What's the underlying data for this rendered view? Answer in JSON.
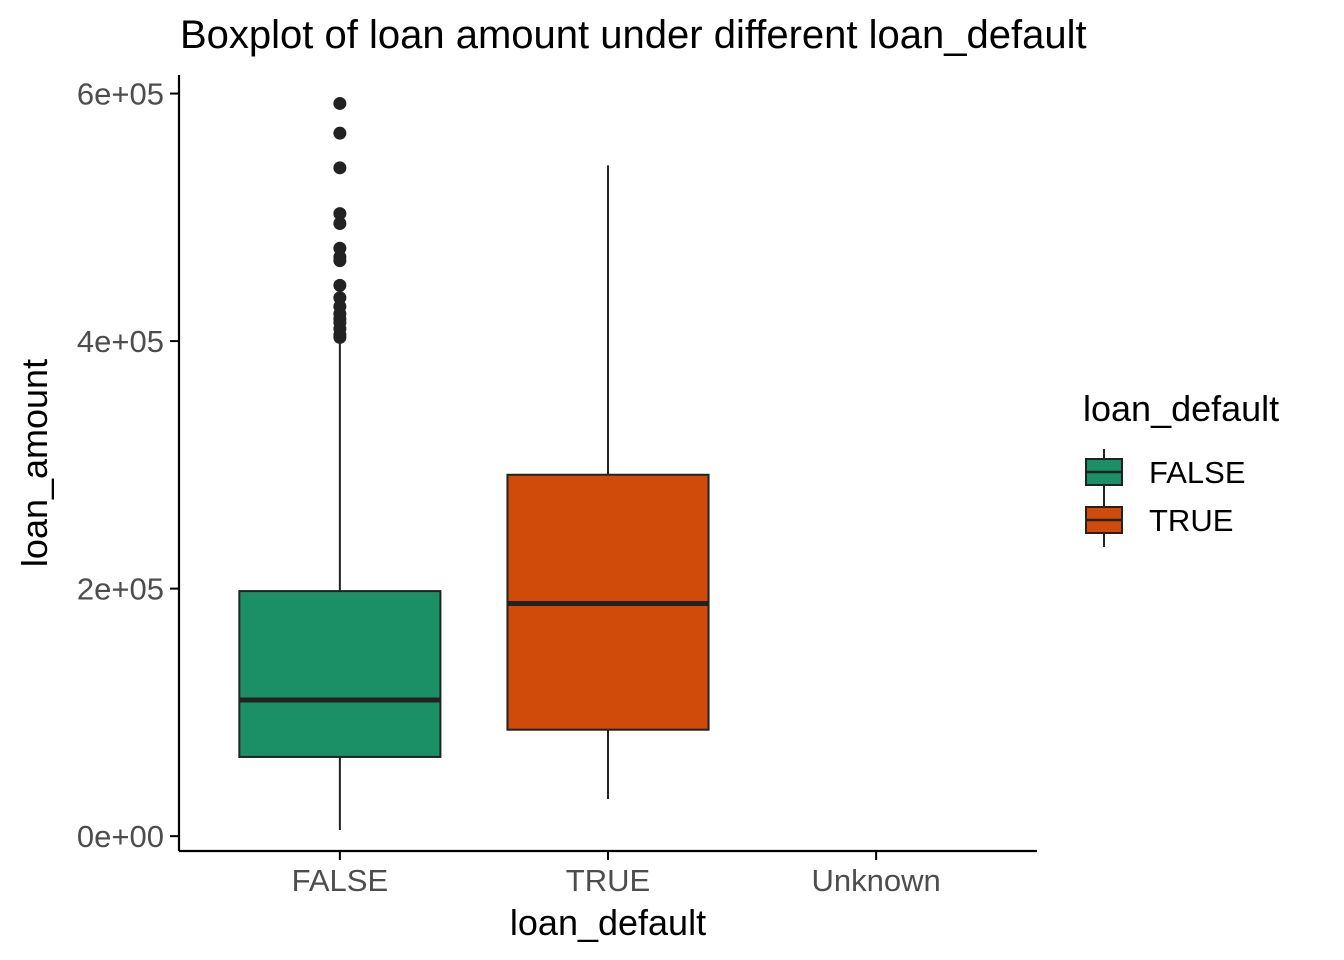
{
  "chart_data": {
    "type": "boxplot",
    "title": "Boxplot of loan amount under different loan_default",
    "xlabel": "loan_default",
    "ylabel": "loan_amount",
    "categories": [
      "FALSE",
      "TRUE",
      "Unknown"
    ],
    "ylim": [
      -12000,
      615000
    ],
    "yticks": [
      0,
      200000,
      400000,
      600000
    ],
    "ytick_labels": [
      "0e+00",
      "2e+05",
      "4e+05",
      "6e+05"
    ],
    "grid": false,
    "legend": {
      "title": "loan_default",
      "position": "right",
      "entries": [
        "FALSE",
        "TRUE"
      ]
    },
    "boxes": [
      {
        "category": "FALSE",
        "min": 5000,
        "q1": 64000,
        "median": 110000,
        "q3": 198000,
        "max": 400000,
        "outliers": [
          403000,
          405000,
          410000,
          415000,
          418000,
          422000,
          428000,
          435000,
          445000,
          465000,
          468000,
          475000,
          495000,
          503000,
          540000,
          568000,
          592000
        ],
        "color": "#1b9066"
      },
      {
        "category": "TRUE",
        "min": 30000,
        "q1": 86000,
        "median": 188000,
        "q3": 292000,
        "max": 542000,
        "outliers": [],
        "color": "#d04a0a"
      }
    ]
  }
}
